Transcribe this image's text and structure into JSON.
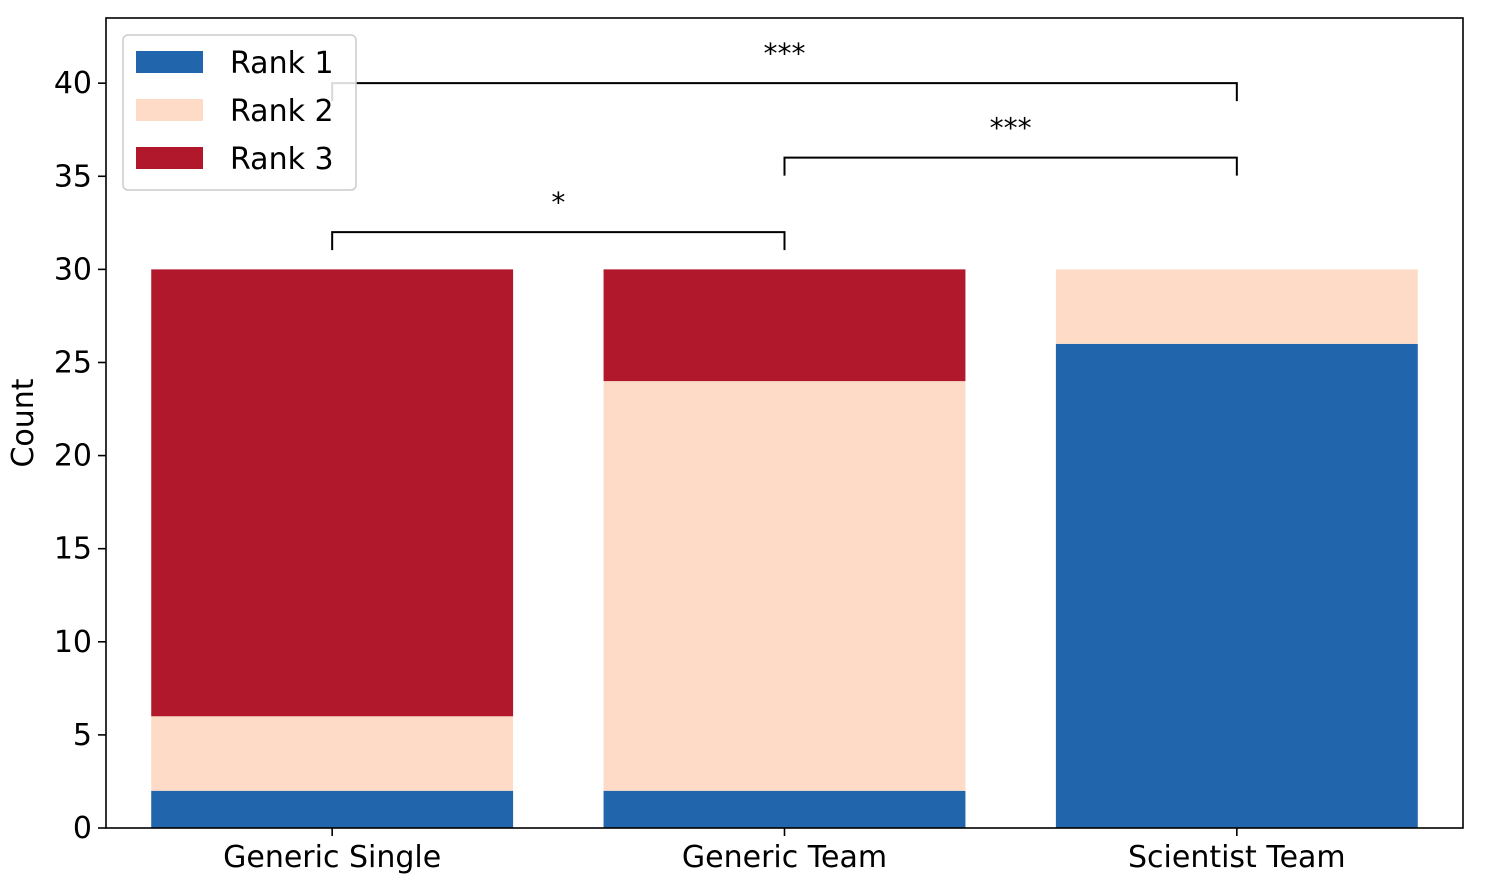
{
  "chart_data": {
    "type": "bar",
    "stacked": true,
    "categories": [
      "Generic Single",
      "Generic Team",
      "Scientist Team"
    ],
    "series": [
      {
        "name": "Rank 1",
        "values": [
          2,
          2,
          26
        ],
        "color": "#2166ac"
      },
      {
        "name": "Rank 2",
        "values": [
          4,
          22,
          4
        ],
        "color": "#fddbc7"
      },
      {
        "name": "Rank 3",
        "values": [
          24,
          6,
          0
        ],
        "color": "#b2182b"
      }
    ],
    "ylabel": "Count",
    "xlabel": "",
    "ylim": [
      0,
      43.5
    ],
    "yticks": [
      0,
      5,
      10,
      15,
      20,
      25,
      30,
      35,
      40
    ],
    "grid": false,
    "legend_position": "top-left",
    "significance": [
      {
        "from": 0,
        "to": 1,
        "y": 32,
        "label": "*"
      },
      {
        "from": 1,
        "to": 2,
        "y": 36,
        "label": "***"
      },
      {
        "from": 0,
        "to": 2,
        "y": 40,
        "label": "***"
      }
    ]
  }
}
